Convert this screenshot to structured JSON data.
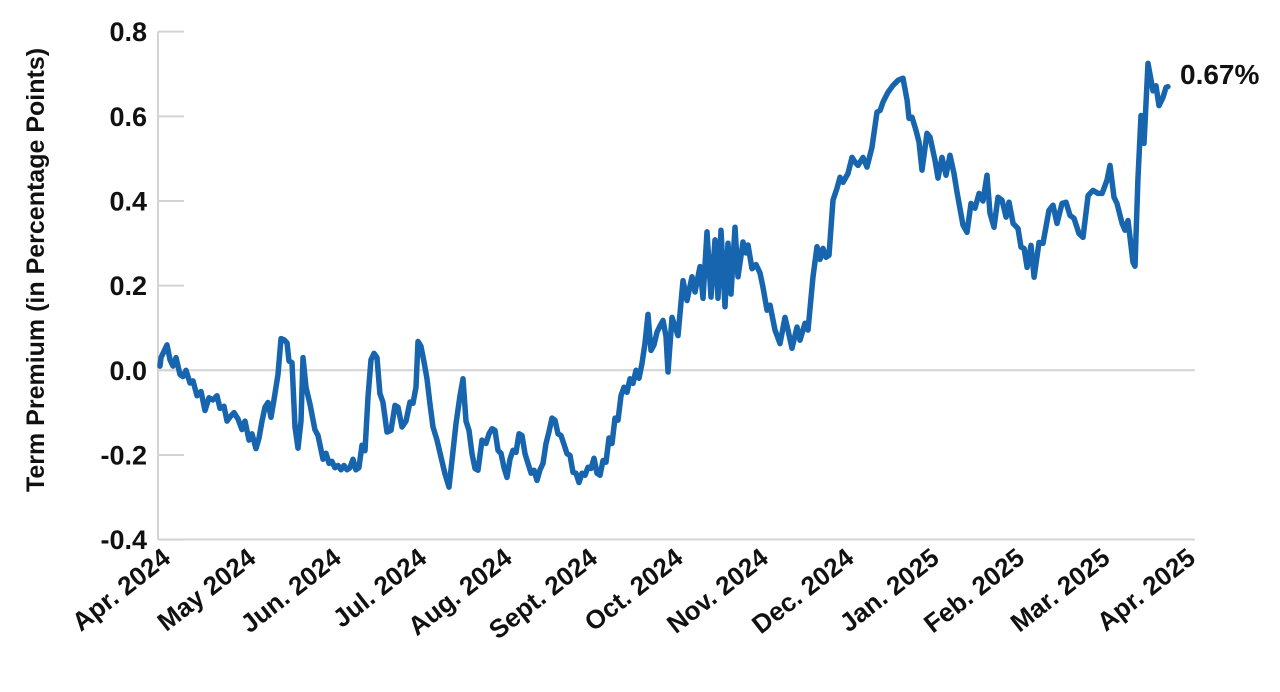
{
  "chart_data": {
    "type": "line",
    "title": "",
    "xlabel": "",
    "ylabel": "Term Premium (in Percentage Points)",
    "x_unit": "months since 2024-04-01",
    "x_tick_labels": [
      "Apr. 2024",
      "May 2024",
      "Jun. 2024",
      "Jul. 2024",
      "Aug. 2024",
      "Sept. 2024",
      "Oct. 2024",
      "Nov. 2024",
      "Dec. 2024",
      "Jan. 2025",
      "Feb. 2025",
      "Mar. 2025",
      "Apr. 2025"
    ],
    "y_ticks": [
      0.8,
      0.6,
      0.4,
      0.2,
      0.0,
      -0.2,
      -0.4
    ],
    "y_tick_labels": [
      "0.8",
      "0.6",
      "0.4",
      "0.2",
      "0.0",
      "-0.2",
      "-0.4"
    ],
    "ylim": [
      -0.4,
      0.8
    ],
    "xlim": [
      0,
      12.1
    ],
    "grid": "zero-line-only",
    "legend_position": "none",
    "annotation": {
      "label": "0.67%",
      "x": 11.8,
      "y": 0.67
    },
    "line_color": "#1765af",
    "axis_color": "#d4d4d4",
    "series": [
      {
        "name": "Term Premium",
        "points": [
          [
            0.0,
            0.01
          ],
          [
            0.012,
            0.03
          ],
          [
            0.047,
            0.045
          ],
          [
            0.082,
            0.06
          ],
          [
            0.117,
            0.025
          ],
          [
            0.152,
            0.01
          ],
          [
            0.187,
            0.03
          ],
          [
            0.234,
            -0.01
          ],
          [
            0.269,
            -0.015
          ],
          [
            0.304,
            0.0
          ],
          [
            0.351,
            -0.03
          ],
          [
            0.386,
            -0.025
          ],
          [
            0.433,
            -0.06
          ],
          [
            0.48,
            -0.05
          ],
          [
            0.527,
            -0.095
          ],
          [
            0.574,
            -0.065
          ],
          [
            0.62,
            -0.07
          ],
          [
            0.667,
            -0.06
          ],
          [
            0.702,
            -0.09
          ],
          [
            0.749,
            -0.085
          ],
          [
            0.784,
            -0.12
          ],
          [
            0.82,
            -0.11
          ],
          [
            0.866,
            -0.1
          ],
          [
            0.913,
            -0.115
          ],
          [
            0.96,
            -0.14
          ],
          [
            0.995,
            -0.12
          ],
          [
            1.042,
            -0.165
          ],
          [
            1.077,
            -0.15
          ],
          [
            1.124,
            -0.185
          ],
          [
            1.159,
            -0.16
          ],
          [
            1.194,
            -0.12
          ],
          [
            1.229,
            -0.087
          ],
          [
            1.264,
            -0.076
          ],
          [
            1.299,
            -0.111
          ],
          [
            1.334,
            -0.071
          ],
          [
            1.381,
            -0.01
          ],
          [
            1.417,
            0.075
          ],
          [
            1.452,
            0.072
          ],
          [
            1.487,
            0.065
          ],
          [
            1.51,
            0.022
          ],
          [
            1.545,
            0.018
          ],
          [
            1.581,
            -0.134
          ],
          [
            1.616,
            -0.184
          ],
          [
            1.651,
            -0.12
          ],
          [
            1.674,
            0.03
          ],
          [
            1.709,
            -0.04
          ],
          [
            1.756,
            -0.08
          ],
          [
            1.814,
            -0.14
          ],
          [
            1.85,
            -0.154
          ],
          [
            1.908,
            -0.21
          ],
          [
            1.943,
            -0.196
          ],
          [
            1.978,
            -0.22
          ],
          [
            2.013,
            -0.215
          ],
          [
            2.048,
            -0.23
          ],
          [
            2.084,
            -0.225
          ],
          [
            2.119,
            -0.235
          ],
          [
            2.154,
            -0.225
          ],
          [
            2.189,
            -0.235
          ],
          [
            2.224,
            -0.23
          ],
          [
            2.259,
            -0.21
          ],
          [
            2.294,
            -0.235
          ],
          [
            2.329,
            -0.23
          ],
          [
            2.365,
            -0.177
          ],
          [
            2.4,
            -0.19
          ],
          [
            2.435,
            -0.063
          ],
          [
            2.47,
            0.025
          ],
          [
            2.505,
            0.04
          ],
          [
            2.54,
            0.03
          ],
          [
            2.575,
            -0.055
          ],
          [
            2.61,
            -0.075
          ],
          [
            2.657,
            -0.146
          ],
          [
            2.704,
            -0.142
          ],
          [
            2.751,
            -0.083
          ],
          [
            2.786,
            -0.087
          ],
          [
            2.833,
            -0.134
          ],
          [
            2.88,
            -0.12
          ],
          [
            2.927,
            -0.075
          ],
          [
            2.962,
            -0.078
          ],
          [
            2.997,
            -0.04
          ],
          [
            3.02,
            0.068
          ],
          [
            3.055,
            0.057
          ],
          [
            3.091,
            0.02
          ],
          [
            3.126,
            -0.02
          ],
          [
            3.161,
            -0.08
          ],
          [
            3.196,
            -0.134
          ],
          [
            3.243,
            -0.165
          ],
          [
            3.29,
            -0.205
          ],
          [
            3.337,
            -0.245
          ],
          [
            3.383,
            -0.276
          ],
          [
            3.418,
            -0.213
          ],
          [
            3.465,
            -0.126
          ],
          [
            3.512,
            -0.06
          ],
          [
            3.547,
            -0.02
          ],
          [
            3.582,
            -0.12
          ],
          [
            3.617,
            -0.142
          ],
          [
            3.653,
            -0.197
          ],
          [
            3.688,
            -0.232
          ],
          [
            3.723,
            -0.236
          ],
          [
            3.77,
            -0.165
          ],
          [
            3.817,
            -0.173
          ],
          [
            3.852,
            -0.15
          ],
          [
            3.887,
            -0.138
          ],
          [
            3.922,
            -0.142
          ],
          [
            3.957,
            -0.189
          ],
          [
            3.992,
            -0.196
          ],
          [
            4.027,
            -0.23
          ],
          [
            4.063,
            -0.253
          ],
          [
            4.098,
            -0.21
          ],
          [
            4.133,
            -0.189
          ],
          [
            4.168,
            -0.194
          ],
          [
            4.203,
            -0.15
          ],
          [
            4.238,
            -0.154
          ],
          [
            4.273,
            -0.197
          ],
          [
            4.308,
            -0.22
          ],
          [
            4.344,
            -0.243
          ],
          [
            4.379,
            -0.236
          ],
          [
            4.414,
            -0.26
          ],
          [
            4.449,
            -0.235
          ],
          [
            4.484,
            -0.22
          ],
          [
            4.519,
            -0.173
          ],
          [
            4.554,
            -0.145
          ],
          [
            4.589,
            -0.113
          ],
          [
            4.624,
            -0.118
          ],
          [
            4.66,
            -0.15
          ],
          [
            4.695,
            -0.154
          ],
          [
            4.73,
            -0.175
          ],
          [
            4.765,
            -0.197
          ],
          [
            4.8,
            -0.201
          ],
          [
            4.835,
            -0.241
          ],
          [
            4.87,
            -0.243
          ],
          [
            4.905,
            -0.265
          ],
          [
            4.941,
            -0.243
          ],
          [
            4.976,
            -0.248
          ],
          [
            5.011,
            -0.229
          ],
          [
            5.046,
            -0.232
          ],
          [
            5.081,
            -0.208
          ],
          [
            5.116,
            -0.243
          ],
          [
            5.151,
            -0.248
          ],
          [
            5.186,
            -0.213
          ],
          [
            5.222,
            -0.217
          ],
          [
            5.257,
            -0.16
          ],
          [
            5.292,
            -0.173
          ],
          [
            5.327,
            -0.113
          ],
          [
            5.362,
            -0.118
          ],
          [
            5.397,
            -0.06
          ],
          [
            5.432,
            -0.04
          ],
          [
            5.467,
            -0.052
          ],
          [
            5.502,
            -0.02
          ],
          [
            5.538,
            -0.031
          ],
          [
            5.573,
            0.0
          ],
          [
            5.608,
            -0.019
          ],
          [
            5.643,
            0.016
          ],
          [
            5.678,
            0.064
          ],
          [
            5.713,
            0.132
          ],
          [
            5.748,
            0.047
          ],
          [
            5.783,
            0.06
          ],
          [
            5.818,
            0.09
          ],
          [
            5.854,
            0.105
          ],
          [
            5.889,
            0.118
          ],
          [
            5.924,
            0.08
          ],
          [
            5.947,
            -0.004
          ],
          [
            5.994,
            0.125
          ],
          [
            6.064,
            0.082
          ],
          [
            6.123,
            0.212
          ],
          [
            6.17,
            0.165
          ],
          [
            6.228,
            0.221
          ],
          [
            6.263,
            0.185
          ],
          [
            6.322,
            0.245
          ],
          [
            6.357,
            0.17
          ],
          [
            6.404,
            0.327
          ],
          [
            6.451,
            0.173
          ],
          [
            6.497,
            0.308
          ],
          [
            6.533,
            0.17
          ],
          [
            6.568,
            0.331
          ],
          [
            6.615,
            0.15
          ],
          [
            6.65,
            0.3
          ],
          [
            6.685,
            0.18
          ],
          [
            6.732,
            0.338
          ],
          [
            6.767,
            0.221
          ],
          [
            6.825,
            0.303
          ],
          [
            6.861,
            0.277
          ],
          [
            6.884,
            0.296
          ],
          [
            6.931,
            0.24
          ],
          [
            6.978,
            0.25
          ],
          [
            7.024,
            0.23
          ],
          [
            7.06,
            0.196
          ],
          [
            7.106,
            0.142
          ],
          [
            7.142,
            0.154
          ],
          [
            7.2,
            0.095
          ],
          [
            7.259,
            0.063
          ],
          [
            7.317,
            0.125
          ],
          [
            7.352,
            0.095
          ],
          [
            7.399,
            0.052
          ],
          [
            7.458,
            0.102
          ],
          [
            7.493,
            0.071
          ],
          [
            7.551,
            0.111
          ],
          [
            7.586,
            0.095
          ],
          [
            7.645,
            0.221
          ],
          [
            7.692,
            0.292
          ],
          [
            7.727,
            0.262
          ],
          [
            7.762,
            0.288
          ],
          [
            7.797,
            0.267
          ],
          [
            7.832,
            0.272
          ],
          [
            7.879,
            0.402
          ],
          [
            7.926,
            0.43
          ],
          [
            7.961,
            0.456
          ],
          [
            7.996,
            0.444
          ],
          [
            8.055,
            0.465
          ],
          [
            8.102,
            0.503
          ],
          [
            8.137,
            0.492
          ],
          [
            8.172,
            0.484
          ],
          [
            8.23,
            0.503
          ],
          [
            8.277,
            0.48
          ],
          [
            8.336,
            0.527
          ],
          [
            8.394,
            0.61
          ],
          [
            8.43,
            0.614
          ],
          [
            8.465,
            0.634
          ],
          [
            8.523,
            0.657
          ],
          [
            8.582,
            0.673
          ],
          [
            8.64,
            0.685
          ],
          [
            8.699,
            0.69
          ],
          [
            8.746,
            0.638
          ],
          [
            8.769,
            0.595
          ],
          [
            8.804,
            0.598
          ],
          [
            8.851,
            0.567
          ],
          [
            8.886,
            0.539
          ],
          [
            8.921,
            0.473
          ],
          [
            8.98,
            0.56
          ],
          [
            9.015,
            0.551
          ],
          [
            9.073,
            0.496
          ],
          [
            9.108,
            0.454
          ],
          [
            9.155,
            0.503
          ],
          [
            9.202,
            0.461
          ],
          [
            9.249,
            0.508
          ],
          [
            9.296,
            0.465
          ],
          [
            9.331,
            0.421
          ],
          [
            9.401,
            0.343
          ],
          [
            9.448,
            0.326
          ],
          [
            9.495,
            0.394
          ],
          [
            9.542,
            0.383
          ],
          [
            9.589,
            0.418
          ],
          [
            9.635,
            0.4
          ],
          [
            9.682,
            0.461
          ],
          [
            9.717,
            0.371
          ],
          [
            9.764,
            0.338
          ],
          [
            9.811,
            0.409
          ],
          [
            9.858,
            0.402
          ],
          [
            9.905,
            0.362
          ],
          [
            9.94,
            0.397
          ],
          [
            9.987,
            0.347
          ],
          [
            10.045,
            0.335
          ],
          [
            10.08,
            0.291
          ],
          [
            10.116,
            0.288
          ],
          [
            10.151,
            0.243
          ],
          [
            10.197,
            0.295
          ],
          [
            10.233,
            0.22
          ],
          [
            10.291,
            0.302
          ],
          [
            10.338,
            0.3
          ],
          [
            10.408,
            0.378
          ],
          [
            10.455,
            0.39
          ],
          [
            10.502,
            0.347
          ],
          [
            10.56,
            0.394
          ],
          [
            10.607,
            0.397
          ],
          [
            10.654,
            0.366
          ],
          [
            10.701,
            0.359
          ],
          [
            10.759,
            0.323
          ],
          [
            10.806,
            0.314
          ],
          [
            10.865,
            0.413
          ],
          [
            10.923,
            0.425
          ],
          [
            10.982,
            0.418
          ],
          [
            11.029,
            0.418
          ],
          [
            11.087,
            0.449
          ],
          [
            11.122,
            0.484
          ],
          [
            11.169,
            0.409
          ],
          [
            11.204,
            0.394
          ],
          [
            11.263,
            0.347
          ],
          [
            11.298,
            0.331
          ],
          [
            11.333,
            0.354
          ],
          [
            11.391,
            0.255
          ],
          [
            11.415,
            0.246
          ],
          [
            11.449,
            0.45
          ],
          [
            11.485,
            0.602
          ],
          [
            11.52,
            0.536
          ],
          [
            11.567,
            0.725
          ],
          [
            11.625,
            0.66
          ],
          [
            11.661,
            0.672
          ],
          [
            11.696,
            0.625
          ],
          [
            11.742,
            0.645
          ],
          [
            11.777,
            0.668
          ],
          [
            11.8,
            0.67
          ]
        ]
      }
    ]
  }
}
